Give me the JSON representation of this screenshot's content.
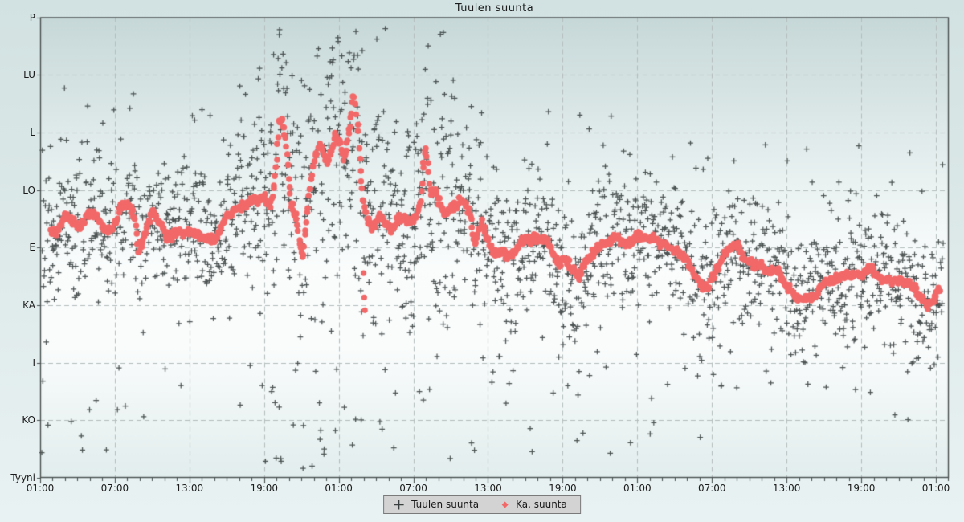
{
  "title": "Tuulen suunta",
  "legend": {
    "scatter_label": "Tuulen suunta",
    "avg_label": "Ka. suunta"
  },
  "colors": {
    "scatter": "#3a4040",
    "avg": "#f26868",
    "grid": "#b4bcbc",
    "axis": "#4a5050",
    "text": "#1c1c1c",
    "legend_bg": "#d3d3d3",
    "legend_border": "#7a7a7a",
    "plot_bg_top": "#c7d8d8",
    "plot_bg_mid": "#fbfdfd",
    "plot_bg_bottom": "#e2eded"
  },
  "y_axis": {
    "labels": [
      {
        "label": "P",
        "deg": 360
      },
      {
        "label": "LU",
        "deg": 315
      },
      {
        "label": "L",
        "deg": 270
      },
      {
        "label": "LO",
        "deg": 225
      },
      {
        "label": "E",
        "deg": 180
      },
      {
        "label": "KA",
        "deg": 135
      },
      {
        "label": "I",
        "deg": 90
      },
      {
        "label": "KO",
        "deg": 45
      },
      {
        "label": "Tyyni",
        "deg": 0
      }
    ]
  },
  "x_axis": {
    "tick_labels": [
      "01:00",
      "07:00",
      "13:00",
      "19:00",
      "01:00",
      "07:00",
      "13:00",
      "19:00",
      "01:00",
      "07:00",
      "13:00",
      "19:00",
      "01:00"
    ],
    "label_every_hours": 6,
    "minor_tick_every_hours": 1,
    "hours_span": 73
  },
  "chart_data": {
    "type": "scatter",
    "title": "Tuulen suunta",
    "x_unit": "time over 3 days, ticks every 6 h starting 01:00",
    "y_unit": "wind direction compass (Finnish): P=N 360, LU=NW 315, L=W 270, LO=SW 225, E=S 180, KA=SE 135, I=E 90, KO=NE 45, Tyyni=calm 0",
    "x_range_hours": [
      0,
      73
    ],
    "y_range_deg": [
      0,
      360
    ],
    "grid": "dashed at every labeled tick",
    "legend_position": "bottom-center",
    "series": [
      {
        "name": "Tuulen suunta",
        "marker": "plus",
        "color": "#3a4040",
        "note": "dense 1-2 min observations, approximated generatively around the average path",
        "generator_spec": {
          "seed": 987654321,
          "windows": [
            {
              "from_h": 0.1,
              "to_h": 17.5,
              "per_hour": 29,
              "sigma_deg": 27,
              "outlier_frac": 0.14,
              "outlier_lo_deg": 15,
              "outlier_hi_deg": 318
            },
            {
              "from_h": 17.5,
              "to_h": 33.5,
              "per_hour": 31,
              "sigma_deg": 44,
              "outlier_frac": 0.3,
              "outlier_lo_deg": 5,
              "outlier_hi_deg": 357
            },
            {
              "from_h": 33.5,
              "to_h": 46.0,
              "per_hour": 29,
              "sigma_deg": 27,
              "outlier_frac": 0.15,
              "outlier_lo_deg": 10,
              "outlier_hi_deg": 292
            },
            {
              "from_h": 46.0,
              "to_h": 72.6,
              "per_hour": 28,
              "sigma_deg": 24,
              "outlier_frac": 0.12,
              "outlier_lo_deg": 25,
              "outlier_hi_deg": 262
            }
          ]
        }
      },
      {
        "name": "Ka. suunta",
        "marker": "dot",
        "color": "#f26868",
        "path_h_deg": [
          [
            0.8,
            193
          ],
          [
            1.3,
            190
          ],
          [
            2.0,
            205
          ],
          [
            2.6,
            201
          ],
          [
            3.2,
            196
          ],
          [
            3.9,
            207
          ],
          [
            4.5,
            205
          ],
          [
            5.2,
            195
          ],
          [
            5.8,
            193
          ],
          [
            6.5,
            212
          ],
          [
            7.1,
            213
          ],
          [
            7.6,
            203
          ],
          [
            7.9,
            176
          ],
          [
            8.4,
            191
          ],
          [
            9.0,
            208
          ],
          [
            9.7,
            198
          ],
          [
            10.3,
            187
          ],
          [
            11.0,
            193
          ],
          [
            11.6,
            190
          ],
          [
            12.3,
            193
          ],
          [
            12.9,
            188
          ],
          [
            13.6,
            186
          ],
          [
            14.2,
            188
          ],
          [
            14.9,
            203
          ],
          [
            15.5,
            208
          ],
          [
            16.1,
            212
          ],
          [
            16.8,
            215
          ],
          [
            17.4,
            217
          ],
          [
            18.1,
            219
          ],
          [
            18.5,
            213
          ],
          [
            18.8,
            229
          ],
          [
            19.0,
            251
          ],
          [
            19.2,
            278
          ],
          [
            19.4,
            280
          ],
          [
            19.6,
            273
          ],
          [
            19.8,
            258
          ],
          [
            20.0,
            232
          ],
          [
            20.2,
            213
          ],
          [
            20.4,
            209
          ],
          [
            20.7,
            198
          ],
          [
            20.9,
            179
          ],
          [
            21.1,
            174
          ],
          [
            21.3,
            191
          ],
          [
            21.6,
            220
          ],
          [
            21.9,
            239
          ],
          [
            22.1,
            251
          ],
          [
            22.4,
            262
          ],
          [
            22.6,
            259
          ],
          [
            22.9,
            249
          ],
          [
            23.2,
            245
          ],
          [
            23.4,
            256
          ],
          [
            23.7,
            267
          ],
          [
            23.9,
            266
          ],
          [
            24.2,
            258
          ],
          [
            24.4,
            249
          ],
          [
            24.6,
            256
          ],
          [
            24.9,
            276
          ],
          [
            25.2,
            300
          ],
          [
            25.4,
            289
          ],
          [
            25.6,
            264
          ],
          [
            25.8,
            235
          ],
          [
            26.0,
            215
          ],
          [
            26.3,
            203
          ],
          [
            26.6,
            195
          ],
          [
            26.9,
            199
          ],
          [
            27.2,
            205
          ],
          [
            27.5,
            203
          ],
          [
            27.9,
            198
          ],
          [
            28.2,
            193
          ],
          [
            28.5,
            197
          ],
          [
            28.8,
            202
          ],
          [
            29.1,
            204
          ],
          [
            29.4,
            202
          ],
          [
            29.7,
            199
          ],
          [
            30.0,
            202
          ],
          [
            30.3,
            207
          ],
          [
            30.6,
            218
          ],
          [
            30.85,
            251
          ],
          [
            31.0,
            258
          ],
          [
            31.2,
            239
          ],
          [
            31.4,
            221
          ],
          [
            31.7,
            225
          ],
          [
            32.0,
            217
          ],
          [
            32.3,
            210
          ],
          [
            32.6,
            207
          ],
          [
            32.9,
            209
          ],
          [
            33.2,
            212
          ],
          [
            33.6,
            215
          ],
          [
            33.9,
            217
          ],
          [
            34.2,
            213
          ],
          [
            34.6,
            204
          ],
          [
            34.9,
            182
          ],
          [
            35.2,
            191
          ],
          [
            35.5,
            201
          ],
          [
            35.8,
            190
          ],
          [
            36.2,
            180
          ],
          [
            36.5,
            176
          ],
          [
            36.8,
            174
          ],
          [
            37.1,
            177
          ],
          [
            37.5,
            174
          ],
          [
            37.8,
            173
          ],
          [
            38.1,
            176
          ],
          [
            38.4,
            179
          ],
          [
            38.7,
            185
          ],
          [
            39.1,
            187
          ],
          [
            39.4,
            183
          ],
          [
            39.7,
            190
          ],
          [
            40.0,
            185
          ],
          [
            40.4,
            188
          ],
          [
            40.7,
            185
          ],
          [
            41.0,
            181
          ],
          [
            41.3,
            173
          ],
          [
            41.7,
            166
          ],
          [
            42.0,
            171
          ],
          [
            42.3,
            169
          ],
          [
            42.6,
            166
          ],
          [
            42.9,
            163
          ],
          [
            43.3,
            158
          ],
          [
            43.6,
            163
          ],
          [
            43.9,
            169
          ],
          [
            44.2,
            174
          ],
          [
            44.6,
            178
          ],
          [
            44.9,
            181
          ],
          [
            45.2,
            182
          ],
          [
            45.5,
            183
          ],
          [
            45.9,
            185
          ],
          [
            46.2,
            188
          ],
          [
            46.5,
            187
          ],
          [
            46.8,
            185
          ],
          [
            47.1,
            183
          ],
          [
            47.5,
            185
          ],
          [
            47.8,
            188
          ],
          [
            48.1,
            190
          ],
          [
            48.4,
            188
          ],
          [
            48.8,
            187
          ],
          [
            49.1,
            188
          ],
          [
            49.4,
            187
          ],
          [
            49.7,
            185
          ],
          [
            50.0,
            183
          ],
          [
            50.4,
            182
          ],
          [
            50.7,
            181
          ],
          [
            51.0,
            178
          ],
          [
            51.3,
            176
          ],
          [
            51.7,
            174
          ],
          [
            52.0,
            170
          ],
          [
            52.3,
            163
          ],
          [
            52.6,
            157
          ],
          [
            53.0,
            153
          ],
          [
            53.3,
            149
          ],
          [
            53.6,
            149
          ],
          [
            53.9,
            154
          ],
          [
            54.2,
            160
          ],
          [
            54.6,
            166
          ],
          [
            54.9,
            174
          ],
          [
            55.2,
            178
          ],
          [
            55.5,
            179
          ],
          [
            55.9,
            181
          ],
          [
            56.1,
            182
          ],
          [
            56.3,
            178
          ],
          [
            56.5,
            173
          ],
          [
            56.8,
            170
          ],
          [
            57.2,
            168
          ],
          [
            57.5,
            166
          ],
          [
            57.8,
            168
          ],
          [
            58.1,
            165
          ],
          [
            58.4,
            163
          ],
          [
            58.8,
            161
          ],
          [
            59.1,
            163
          ],
          [
            59.4,
            160
          ],
          [
            59.7,
            155
          ],
          [
            60.1,
            149
          ],
          [
            60.4,
            146
          ],
          [
            60.7,
            142
          ],
          [
            61.0,
            140
          ],
          [
            61.3,
            139
          ],
          [
            61.7,
            140
          ],
          [
            62.0,
            141
          ],
          [
            62.3,
            142
          ],
          [
            62.6,
            146
          ],
          [
            63.0,
            151
          ],
          [
            63.3,
            153
          ],
          [
            63.6,
            154
          ],
          [
            63.9,
            155
          ],
          [
            64.2,
            156
          ],
          [
            64.6,
            157
          ],
          [
            64.9,
            159
          ],
          [
            65.2,
            158
          ],
          [
            65.5,
            159
          ],
          [
            65.9,
            158
          ],
          [
            66.2,
            160
          ],
          [
            66.5,
            164
          ],
          [
            66.8,
            165
          ],
          [
            67.1,
            160
          ],
          [
            67.5,
            157
          ],
          [
            67.8,
            155
          ],
          [
            68.1,
            154
          ],
          [
            68.4,
            155
          ],
          [
            68.8,
            154
          ],
          [
            69.1,
            153
          ],
          [
            69.4,
            153
          ],
          [
            69.7,
            153
          ],
          [
            70.0,
            151
          ],
          [
            70.4,
            147
          ],
          [
            70.7,
            143
          ],
          [
            71.0,
            138
          ],
          [
            71.4,
            135
          ],
          [
            71.7,
            138
          ],
          [
            72.0,
            144
          ],
          [
            72.3,
            147
          ]
        ],
        "outliers_h_deg": [
          [
            26.0,
            160
          ],
          [
            26.05,
            141
          ],
          [
            26.1,
            131
          ]
        ],
        "band_jitter_deg": 2.0
      }
    ]
  }
}
